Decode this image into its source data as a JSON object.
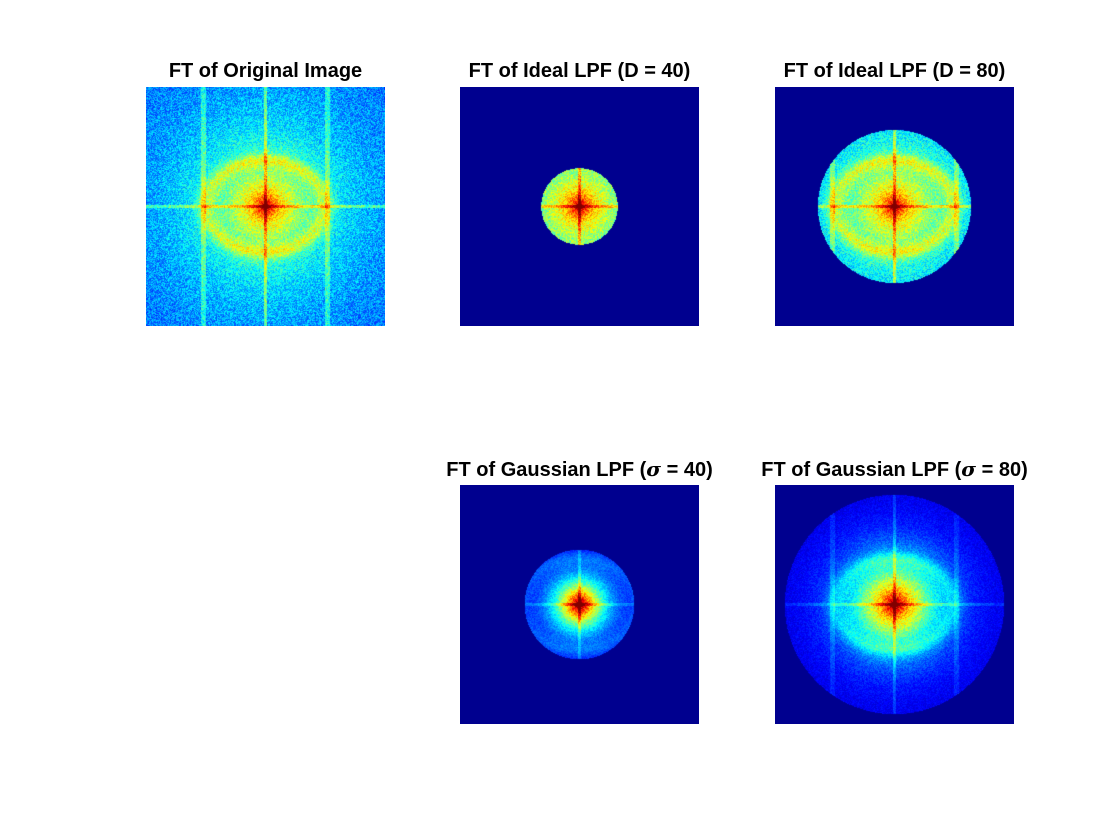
{
  "panels": [
    {
      "title": "FT of Original Image",
      "filter": "none"
    },
    {
      "title": "FT of Ideal LPF (D = 40)",
      "filter": "ideal",
      "cutoff": 40
    },
    {
      "title": "FT of Ideal LPF (D = 80)",
      "filter": "ideal",
      "cutoff": 80
    },
    {
      "title_prefix": "FT of Gaussian LPF (",
      "title_symbol": "σ",
      "title_suffix": " = 40)",
      "filter": "gaussian",
      "sigma": 40
    },
    {
      "title_prefix": "FT of Gaussian LPF (",
      "title_symbol": "σ",
      "title_suffix": " = 80)",
      "filter": "gaussian",
      "sigma": 80
    }
  ],
  "colormap": "jet",
  "background_color": "#00008f"
}
